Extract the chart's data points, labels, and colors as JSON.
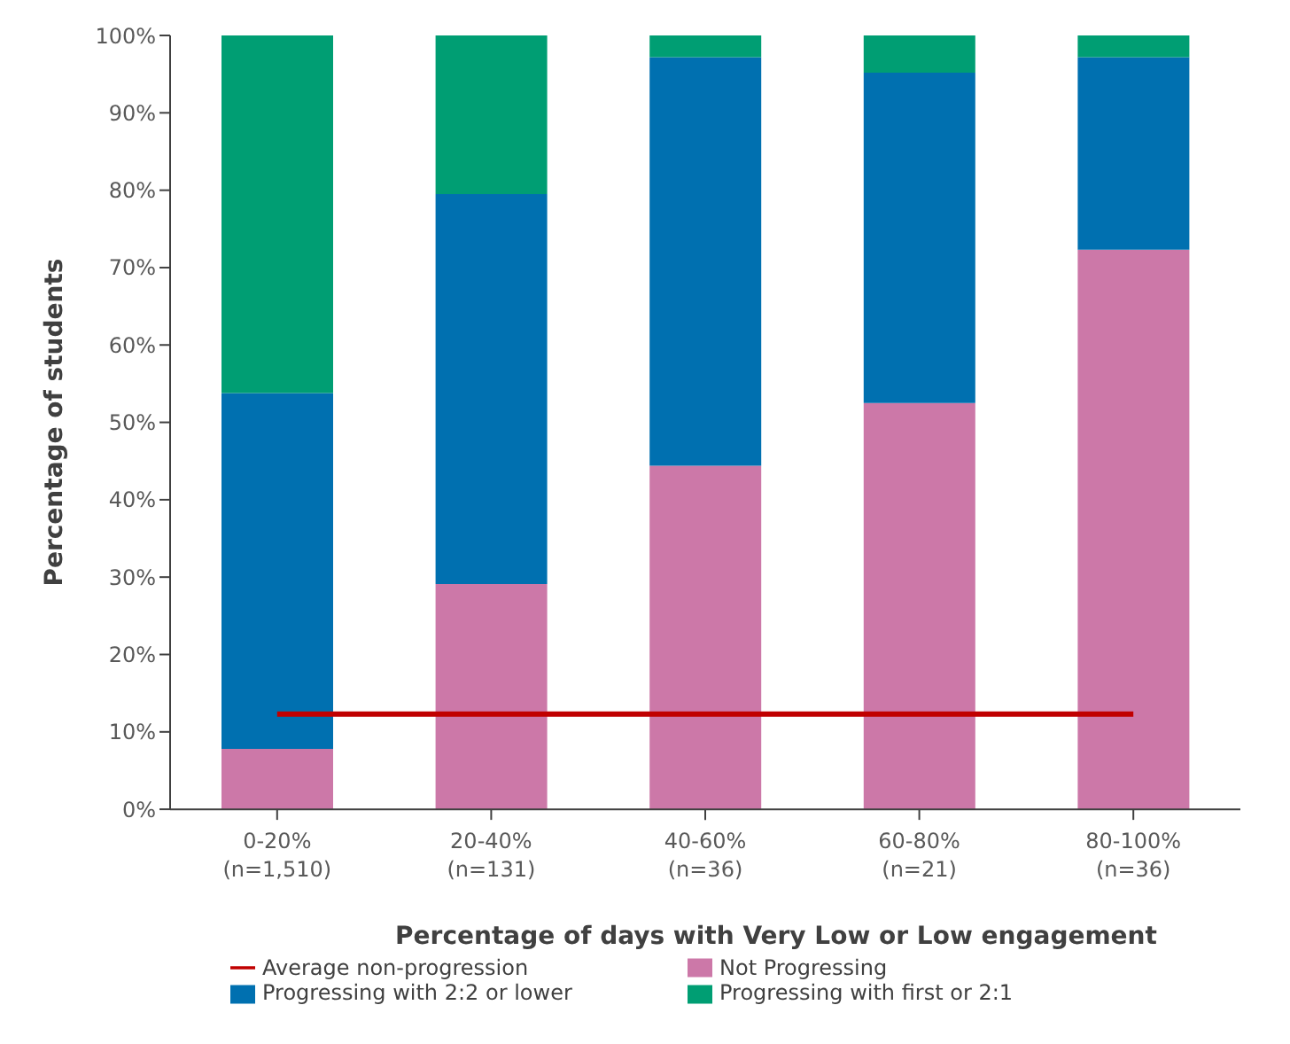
{
  "chart_data": {
    "type": "bar",
    "stacked": true,
    "xlabel": "Percentage of days with Very Low or Low engagement",
    "ylabel": "Percentage of students",
    "categories": [
      "0-20%\n(n=1,510)",
      "20-40%\n(n=131)",
      "40-60%\n(n=36)",
      "60-80%\n(n=21)",
      "80-100%\n(n=36)"
    ],
    "series": [
      {
        "name": "Not Progressing",
        "color": "#cc78a8",
        "values": [
          7.8,
          29.1,
          44.4,
          52.5,
          72.3
        ]
      },
      {
        "name": "Progressing with 2:2 or lower",
        "color": "#0070b0",
        "values": [
          46.0,
          50.4,
          52.8,
          42.7,
          24.9
        ]
      },
      {
        "name": "Progressing with first or 2:1",
        "color": "#009e73",
        "values": [
          46.2,
          20.5,
          2.8,
          4.8,
          2.8
        ]
      },
      {
        "name": "Average non-progression",
        "type": "line",
        "color": "#c00000",
        "values": [
          12.3,
          12.3,
          12.3,
          12.3,
          12.3
        ]
      }
    ],
    "ylim": [
      0,
      100
    ],
    "yticks": [
      {
        "value": 0,
        "label": "0%"
      },
      {
        "value": 10,
        "label": "10%"
      },
      {
        "value": 20,
        "label": "20%"
      },
      {
        "value": 30,
        "label": "30%"
      },
      {
        "value": 40,
        "label": "40%"
      },
      {
        "value": 50,
        "label": "50%"
      },
      {
        "value": 60,
        "label": "60%"
      },
      {
        "value": 70,
        "label": "70%"
      },
      {
        "value": 80,
        "label": "80%"
      },
      {
        "value": 90,
        "label": "90%"
      },
      {
        "value": 100,
        "label": "100%"
      }
    ],
    "grid": false,
    "legend": "bottom"
  }
}
